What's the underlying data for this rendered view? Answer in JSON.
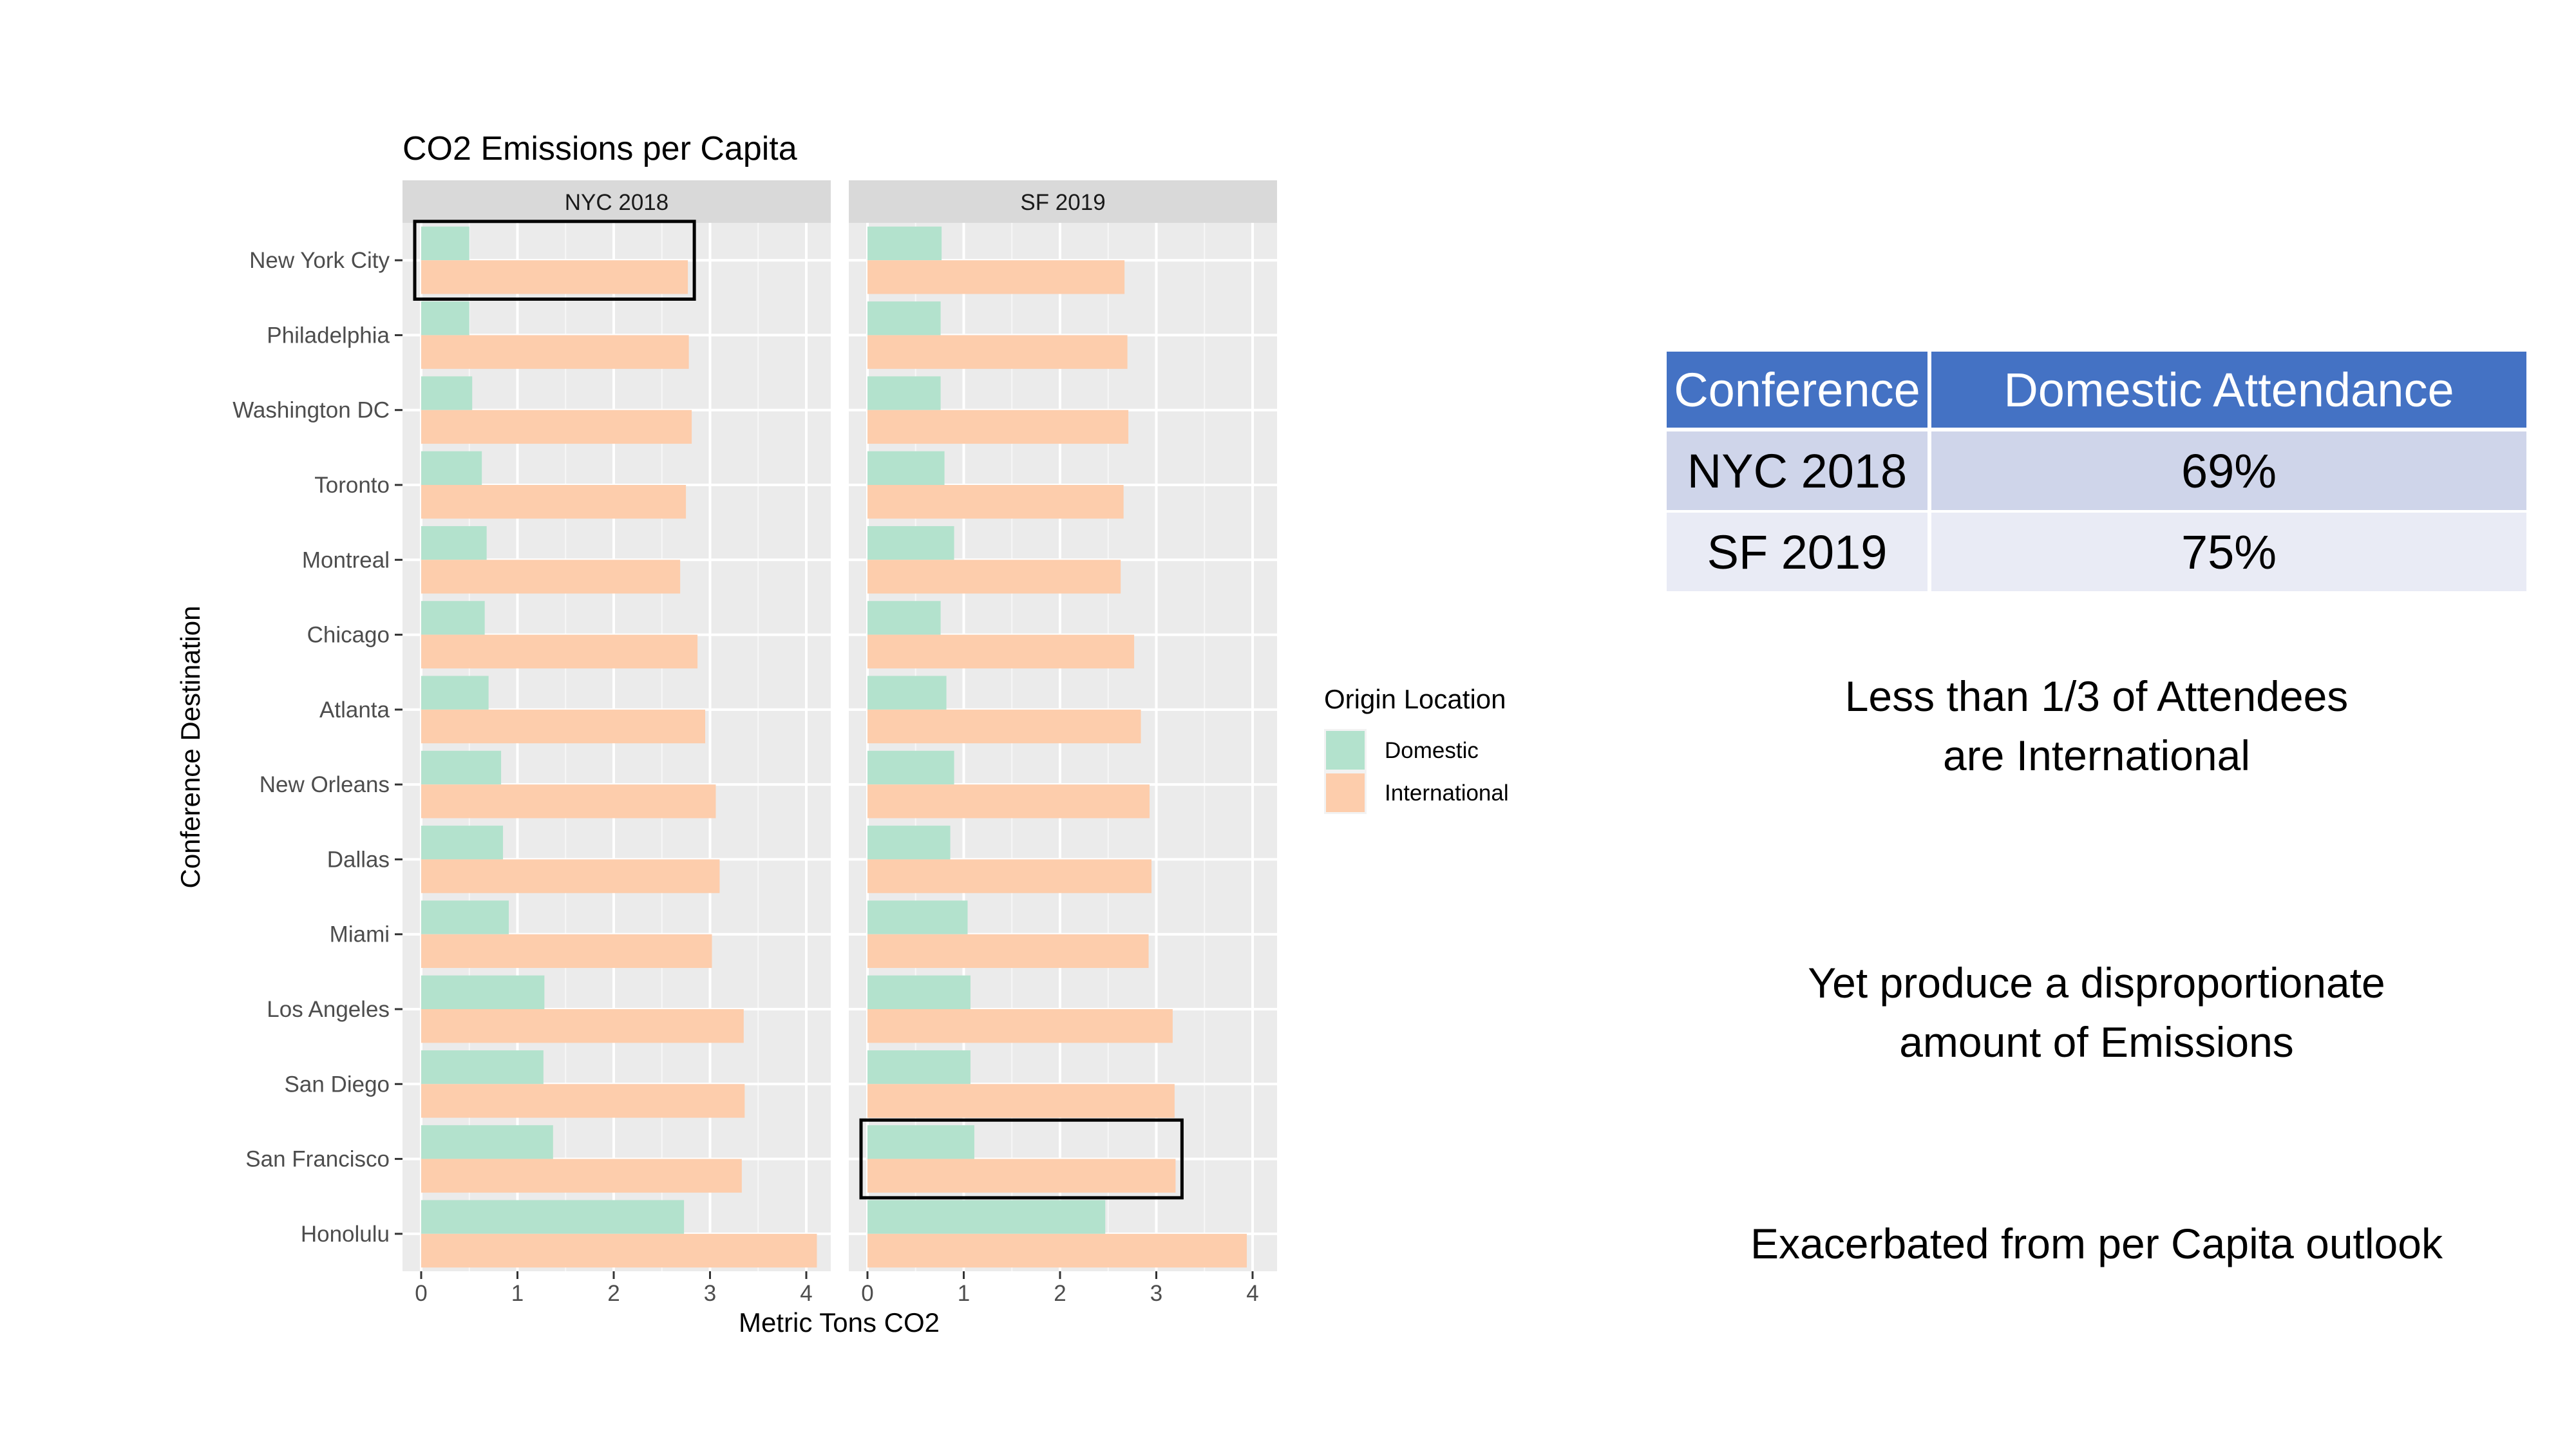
{
  "chart_data": {
    "type": "bar",
    "orientation": "horizontal",
    "title": "CO2 Emissions per Capita",
    "xlabel": "Metric Tons CO2",
    "ylabel": "Conference Destination",
    "xlim": [
      0,
      4
    ],
    "xticks": [
      "0",
      "1",
      "2",
      "3",
      "4"
    ],
    "grid": true,
    "legend": {
      "title": "Origin Location",
      "position": "right"
    },
    "categories": [
      "New York City",
      "Philadelphia",
      "Washington DC",
      "Toronto",
      "Montreal",
      "Chicago",
      "Atlanta",
      "New Orleans",
      "Dallas",
      "Miami",
      "Los Angeles",
      "San Diego",
      "San Francisco",
      "Honolulu"
    ],
    "series_meta": [
      {
        "name": "Domestic",
        "color": "#b3e2cd"
      },
      {
        "name": "International",
        "color": "#fdcdac"
      }
    ],
    "panels": [
      {
        "label": "NYC 2018",
        "series": [
          {
            "name": "Domestic",
            "values": [
              0.5,
              0.5,
              0.53,
              0.63,
              0.68,
              0.66,
              0.7,
              0.83,
              0.85,
              0.91,
              1.28,
              1.27,
              1.37,
              2.73
            ]
          },
          {
            "name": "International",
            "values": [
              2.77,
              2.78,
              2.81,
              2.75,
              2.69,
              2.87,
              2.95,
              3.06,
              3.1,
              3.02,
              3.35,
              3.36,
              3.33,
              4.11
            ]
          }
        ],
        "highlight_category": "New York City"
      },
      {
        "label": "SF 2019",
        "series": [
          {
            "name": "Domestic",
            "values": [
              0.77,
              0.76,
              0.76,
              0.8,
              0.9,
              0.76,
              0.82,
              0.9,
              0.86,
              1.04,
              1.07,
              1.07,
              1.11,
              2.47
            ]
          },
          {
            "name": "International",
            "values": [
              2.67,
              2.7,
              2.71,
              2.66,
              2.63,
              2.77,
              2.84,
              2.93,
              2.95,
              2.92,
              3.17,
              3.19,
              3.2,
              3.94
            ]
          }
        ],
        "highlight_category": "San Francisco"
      }
    ]
  },
  "attendance_table": {
    "headers": [
      "Conference",
      "Domestic Attendance"
    ],
    "rows": [
      [
        "NYC 2018",
        "69%"
      ],
      [
        "SF 2019",
        "75%"
      ]
    ]
  },
  "notes": {
    "note1_line1": "Less than 1/3 of Attendees",
    "note1_line2": "are International",
    "note2_line1": "Yet produce a disproportionate",
    "note2_line2": "amount of Emissions",
    "note3": "Exacerbated from per Capita outlook"
  }
}
